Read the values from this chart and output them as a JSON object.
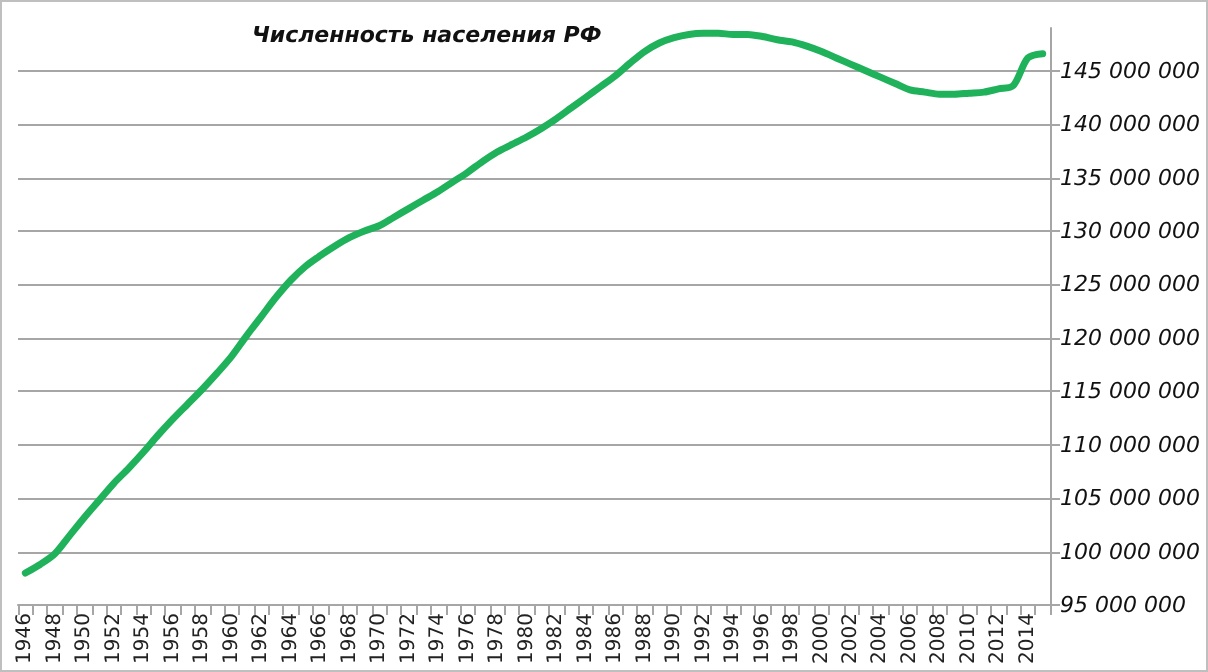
{
  "chart_data": {
    "type": "line",
    "title": "Численность населения РФ",
    "categories": [
      "1946",
      null,
      "1948",
      null,
      "1950",
      null,
      "1952",
      null,
      "1954",
      null,
      "1956",
      null,
      "1958",
      null,
      "1960",
      null,
      "1962",
      null,
      "1964",
      null,
      "1966",
      null,
      "1968",
      null,
      "1970",
      null,
      "1972",
      null,
      "1974",
      null,
      "1976",
      null,
      "1978",
      null,
      "1980",
      null,
      "1982",
      null,
      "1984",
      null,
      "1986",
      null,
      "1988",
      null,
      "1990",
      null,
      "1992",
      null,
      "1994",
      null,
      "1996",
      null,
      "1998",
      null,
      "2000",
      null,
      "2002",
      null,
      "2004",
      null,
      "2006",
      null,
      "2008",
      null,
      "2010",
      null,
      "2012",
      null,
      "2014",
      null
    ],
    "series": [
      {
        "color": "#1fb25a",
        "values": [
          98000000,
          98800000,
          99800000,
          101500000,
          103200000,
          104800000,
          106400000,
          107800000,
          109300000,
          110900000,
          112400000,
          113800000,
          115200000,
          116700000,
          118300000,
          120200000,
          122000000,
          123800000,
          125400000,
          126700000,
          127700000,
          128600000,
          129400000,
          130000000,
          130500000,
          131300000,
          132100000,
          132900000,
          133700000,
          134600000,
          135500000,
          136500000,
          137400000,
          138100000,
          138800000,
          139600000,
          140500000,
          141500000,
          142500000,
          143500000,
          144500000,
          145700000,
          146800000,
          147600000,
          148100000,
          148400000,
          148500000,
          148500000,
          148400000,
          148400000,
          148200000,
          147900000,
          147700000,
          147300000,
          146800000,
          146200000,
          145600000,
          145000000,
          144400000,
          143800000,
          143200000,
          143000000,
          142800000,
          142800000,
          142900000,
          143000000,
          143300000,
          143600000,
          146200000,
          146600000
        ]
      }
    ],
    "ylim": [
      95000000,
      149000000
    ],
    "yticks": [
      95000000,
      100000000,
      105000000,
      110000000,
      115000000,
      120000000,
      125000000,
      130000000,
      135000000,
      140000000,
      145000000
    ],
    "grid": "y",
    "marker": "none",
    "line_style": "solid"
  }
}
